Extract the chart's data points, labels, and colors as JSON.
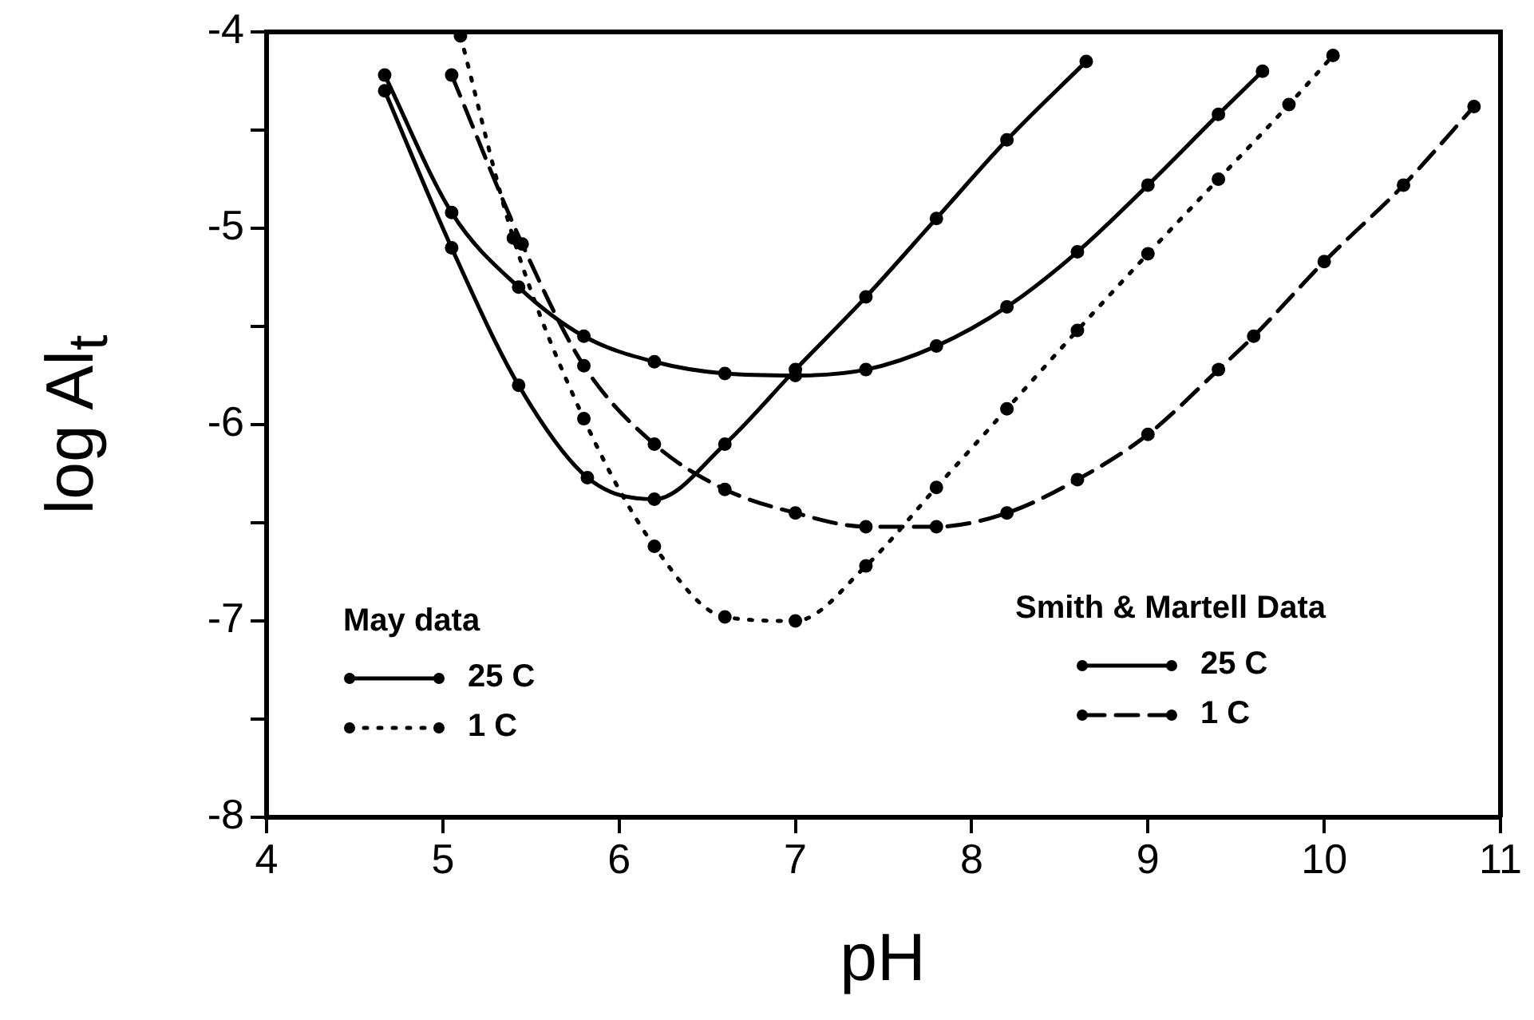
{
  "chart_data": {
    "type": "line",
    "xlabel": "pH",
    "ylabel": "log Al$_{t}$",
    "xlim": [
      4,
      11
    ],
    "ylim": [
      -8,
      -4
    ],
    "xticks": [
      4,
      5,
      6,
      7,
      8,
      9,
      10,
      11
    ],
    "yticks": [
      -8,
      {
        "value": -7.5,
        "label": null
      },
      -7,
      {
        "value": -6.5,
        "label": null
      },
      -6,
      {
        "value": -5.5,
        "label": null
      },
      -5,
      {
        "value": -4.5,
        "label": null
      },
      -4
    ],
    "grid": false,
    "legend": "bottom",
    "marker": "circle",
    "annotations": [
      "May data",
      "Smith & Martell Data"
    ],
    "series": [
      {
        "name": "25 C",
        "color": "#000000",
        "line_style": "solid",
        "x": [
          4.67,
          5.05,
          5.43,
          5.82,
          6.2,
          6.6,
          7.0,
          7.4,
          7.8,
          8.2,
          8.65
        ],
        "values": [
          -4.3,
          -5.1,
          -5.8,
          -6.27,
          -6.38,
          -6.1,
          -5.72,
          -5.35,
          -4.95,
          -4.55,
          -4.15
        ]
      },
      {
        "name": "1 C",
        "color": "#000000",
        "line_style": "dotted",
        "x": [
          5.1,
          5.4,
          5.8,
          6.2,
          6.6,
          7.0,
          7.4,
          7.8,
          8.2,
          8.6,
          9.0,
          9.4,
          9.8,
          10.05
        ],
        "values": [
          -4.02,
          -5.05,
          -5.97,
          -6.62,
          -6.98,
          -7.0,
          -6.72,
          -6.32,
          -5.92,
          -5.52,
          -5.13,
          -4.75,
          -4.37,
          -4.12
        ]
      },
      {
        "name": "25 C",
        "color": "#000000",
        "line_style": "solid",
        "x": [
          4.67,
          5.05,
          5.43,
          5.8,
          6.2,
          6.6,
          7.0,
          7.4,
          7.8,
          8.2,
          8.6,
          9.0,
          9.4,
          9.65
        ],
        "values": [
          -4.22,
          -4.92,
          -5.3,
          -5.55,
          -5.68,
          -5.74,
          -5.75,
          -5.72,
          -5.6,
          -5.4,
          -5.12,
          -4.78,
          -4.42,
          -4.2
        ]
      },
      {
        "name": "1 C",
        "color": "#000000",
        "line_style": "dashed",
        "x": [
          5.05,
          5.45,
          5.8,
          6.2,
          6.6,
          7.0,
          7.4,
          7.8,
          8.2,
          8.6,
          9.0,
          9.4,
          9.6,
          10.0,
          10.45,
          10.85
        ],
        "values": [
          -4.22,
          -5.08,
          -5.7,
          -6.1,
          -6.33,
          -6.45,
          -6.52,
          -6.52,
          -6.45,
          -6.28,
          -6.05,
          -5.72,
          -5.55,
          -5.17,
          -4.78,
          -4.38
        ]
      }
    ]
  }
}
